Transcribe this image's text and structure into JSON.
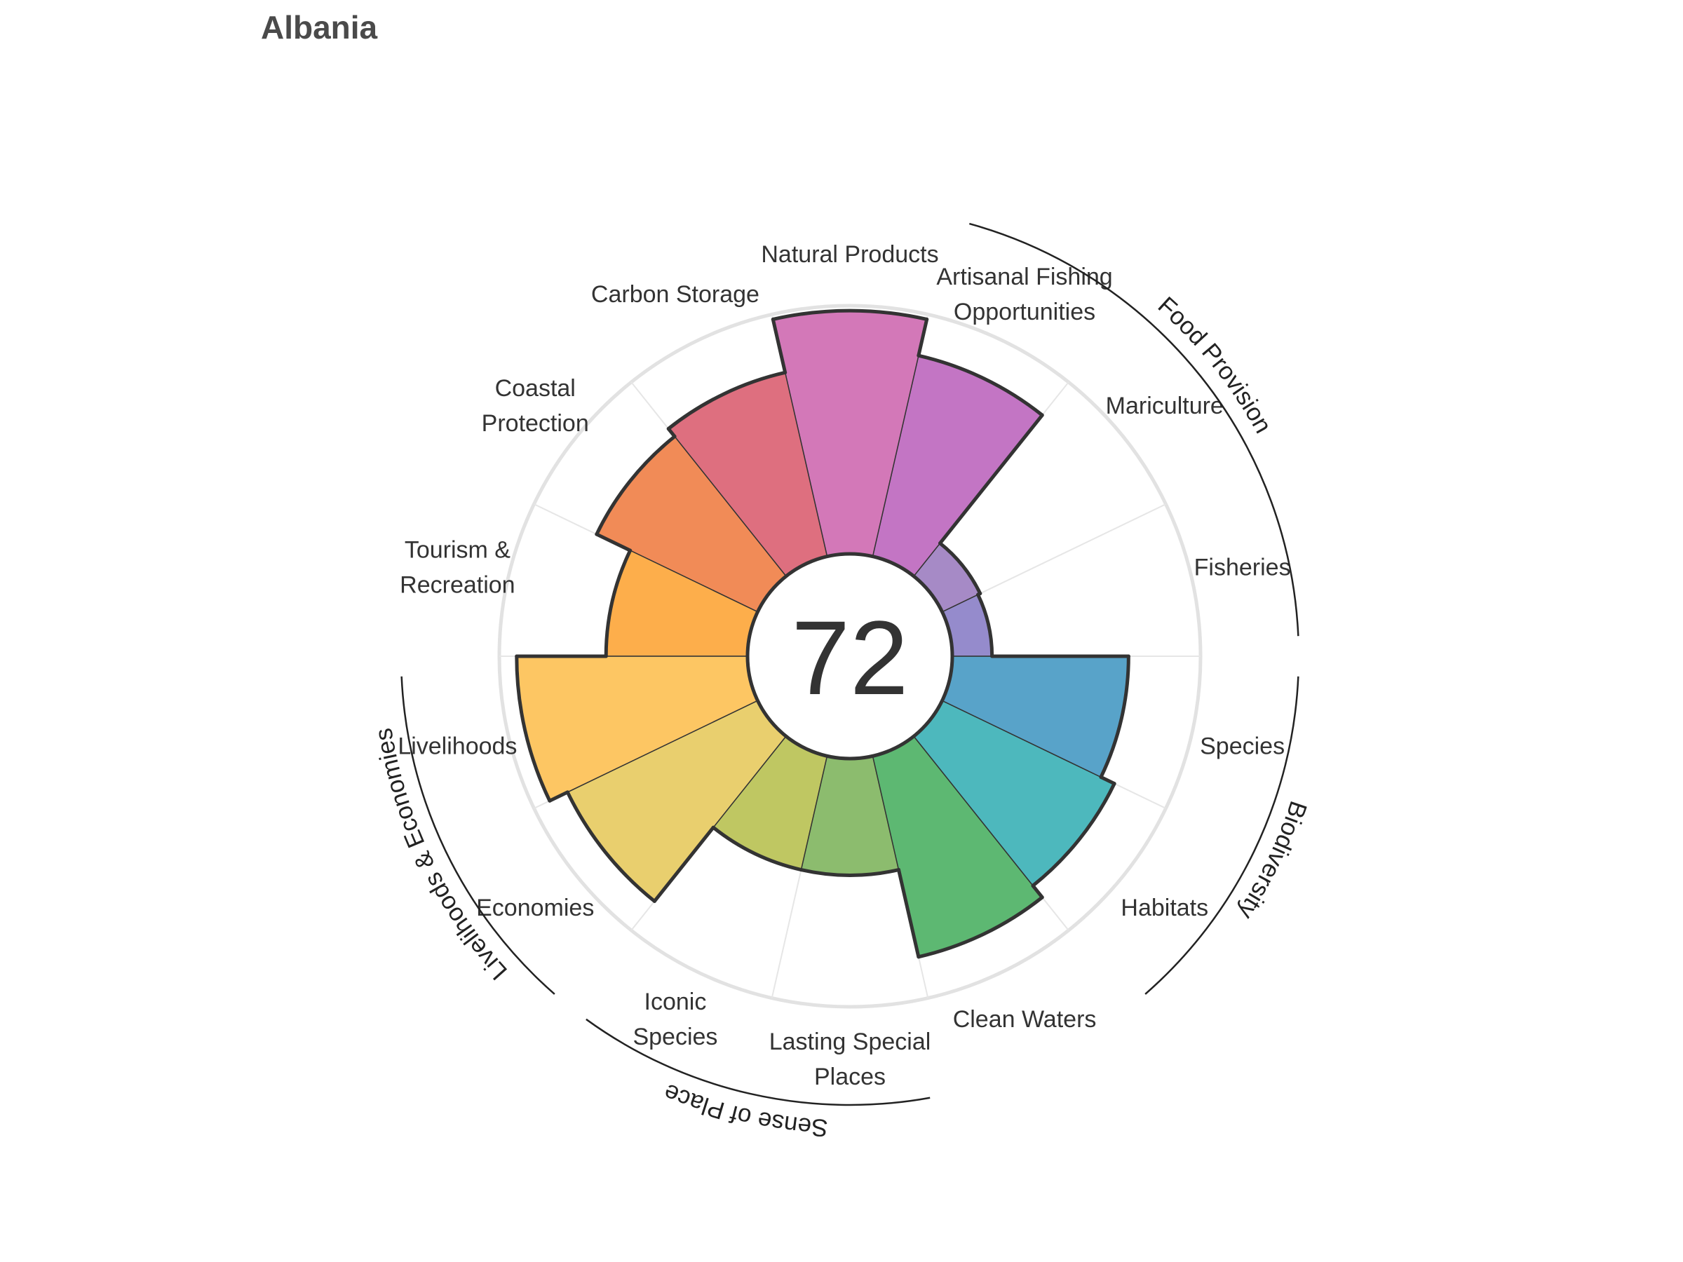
{
  "title": "Albania",
  "chart_data": {
    "type": "rose",
    "score": "72",
    "value_max": 100,
    "segments": [
      {
        "name": "Fisheries",
        "label_lines": [
          "Fisheries"
        ],
        "value": 16,
        "color": "#958bcc"
      },
      {
        "name": "Mariculture",
        "label_lines": [
          "Mariculture"
        ],
        "value": 17,
        "color": "#a68ac6"
      },
      {
        "name": "Artisanal Fishing Opportunities",
        "label_lines": [
          "Artisanal Fishing",
          "Opportunities"
        ],
        "value": 83,
        "color": "#c375c4"
      },
      {
        "name": "Natural Products",
        "label_lines": [
          "Natural Products"
        ],
        "value": 98,
        "color": "#d378b8"
      },
      {
        "name": "Carbon Storage",
        "label_lines": [
          "Carbon Storage"
        ],
        "value": 76,
        "color": "#de6f7f"
      },
      {
        "name": "Coastal Protection",
        "label_lines": [
          "Coastal",
          "Protection"
        ],
        "value": 72,
        "color": "#f18b57"
      },
      {
        "name": "Tourism & Recreation",
        "label_lines": [
          "Tourism &",
          "Recreation"
        ],
        "value": 57,
        "color": "#fdae4b"
      },
      {
        "name": "Livelihoods",
        "label_lines": [
          "Livelihoods"
        ],
        "value": 93,
        "color": "#fdc663"
      },
      {
        "name": "Economies",
        "label_lines": [
          "Economies"
        ],
        "value": 85,
        "color": "#e9cf6e"
      },
      {
        "name": "Iconic Species",
        "label_lines": [
          "Iconic",
          "Species"
        ],
        "value": 47,
        "color": "#bfc762"
      },
      {
        "name": "Lasting Special Places",
        "label_lines": [
          "Lasting Special",
          "Places"
        ],
        "value": 47,
        "color": "#8cbc6e"
      },
      {
        "name": "Clean Waters",
        "label_lines": [
          "Clean Waters"
        ],
        "value": 83,
        "color": "#5db872"
      },
      {
        "name": "Habitats",
        "label_lines": [
          "Habitats"
        ],
        "value": 77,
        "color": "#4db8bd"
      },
      {
        "name": "Species",
        "label_lines": [
          "Species"
        ],
        "value": 71,
        "color": "#58a3c9"
      }
    ],
    "groups": [
      {
        "name": "Food Provision",
        "from": 0,
        "to": 2
      },
      {
        "name": "Biodiversity",
        "from": 12,
        "to": 13
      },
      {
        "name": "Sense of Place",
        "from": 9,
        "to": 10
      },
      {
        "name": "Livelihoods & Economies",
        "from": 7,
        "to": 8
      }
    ]
  }
}
